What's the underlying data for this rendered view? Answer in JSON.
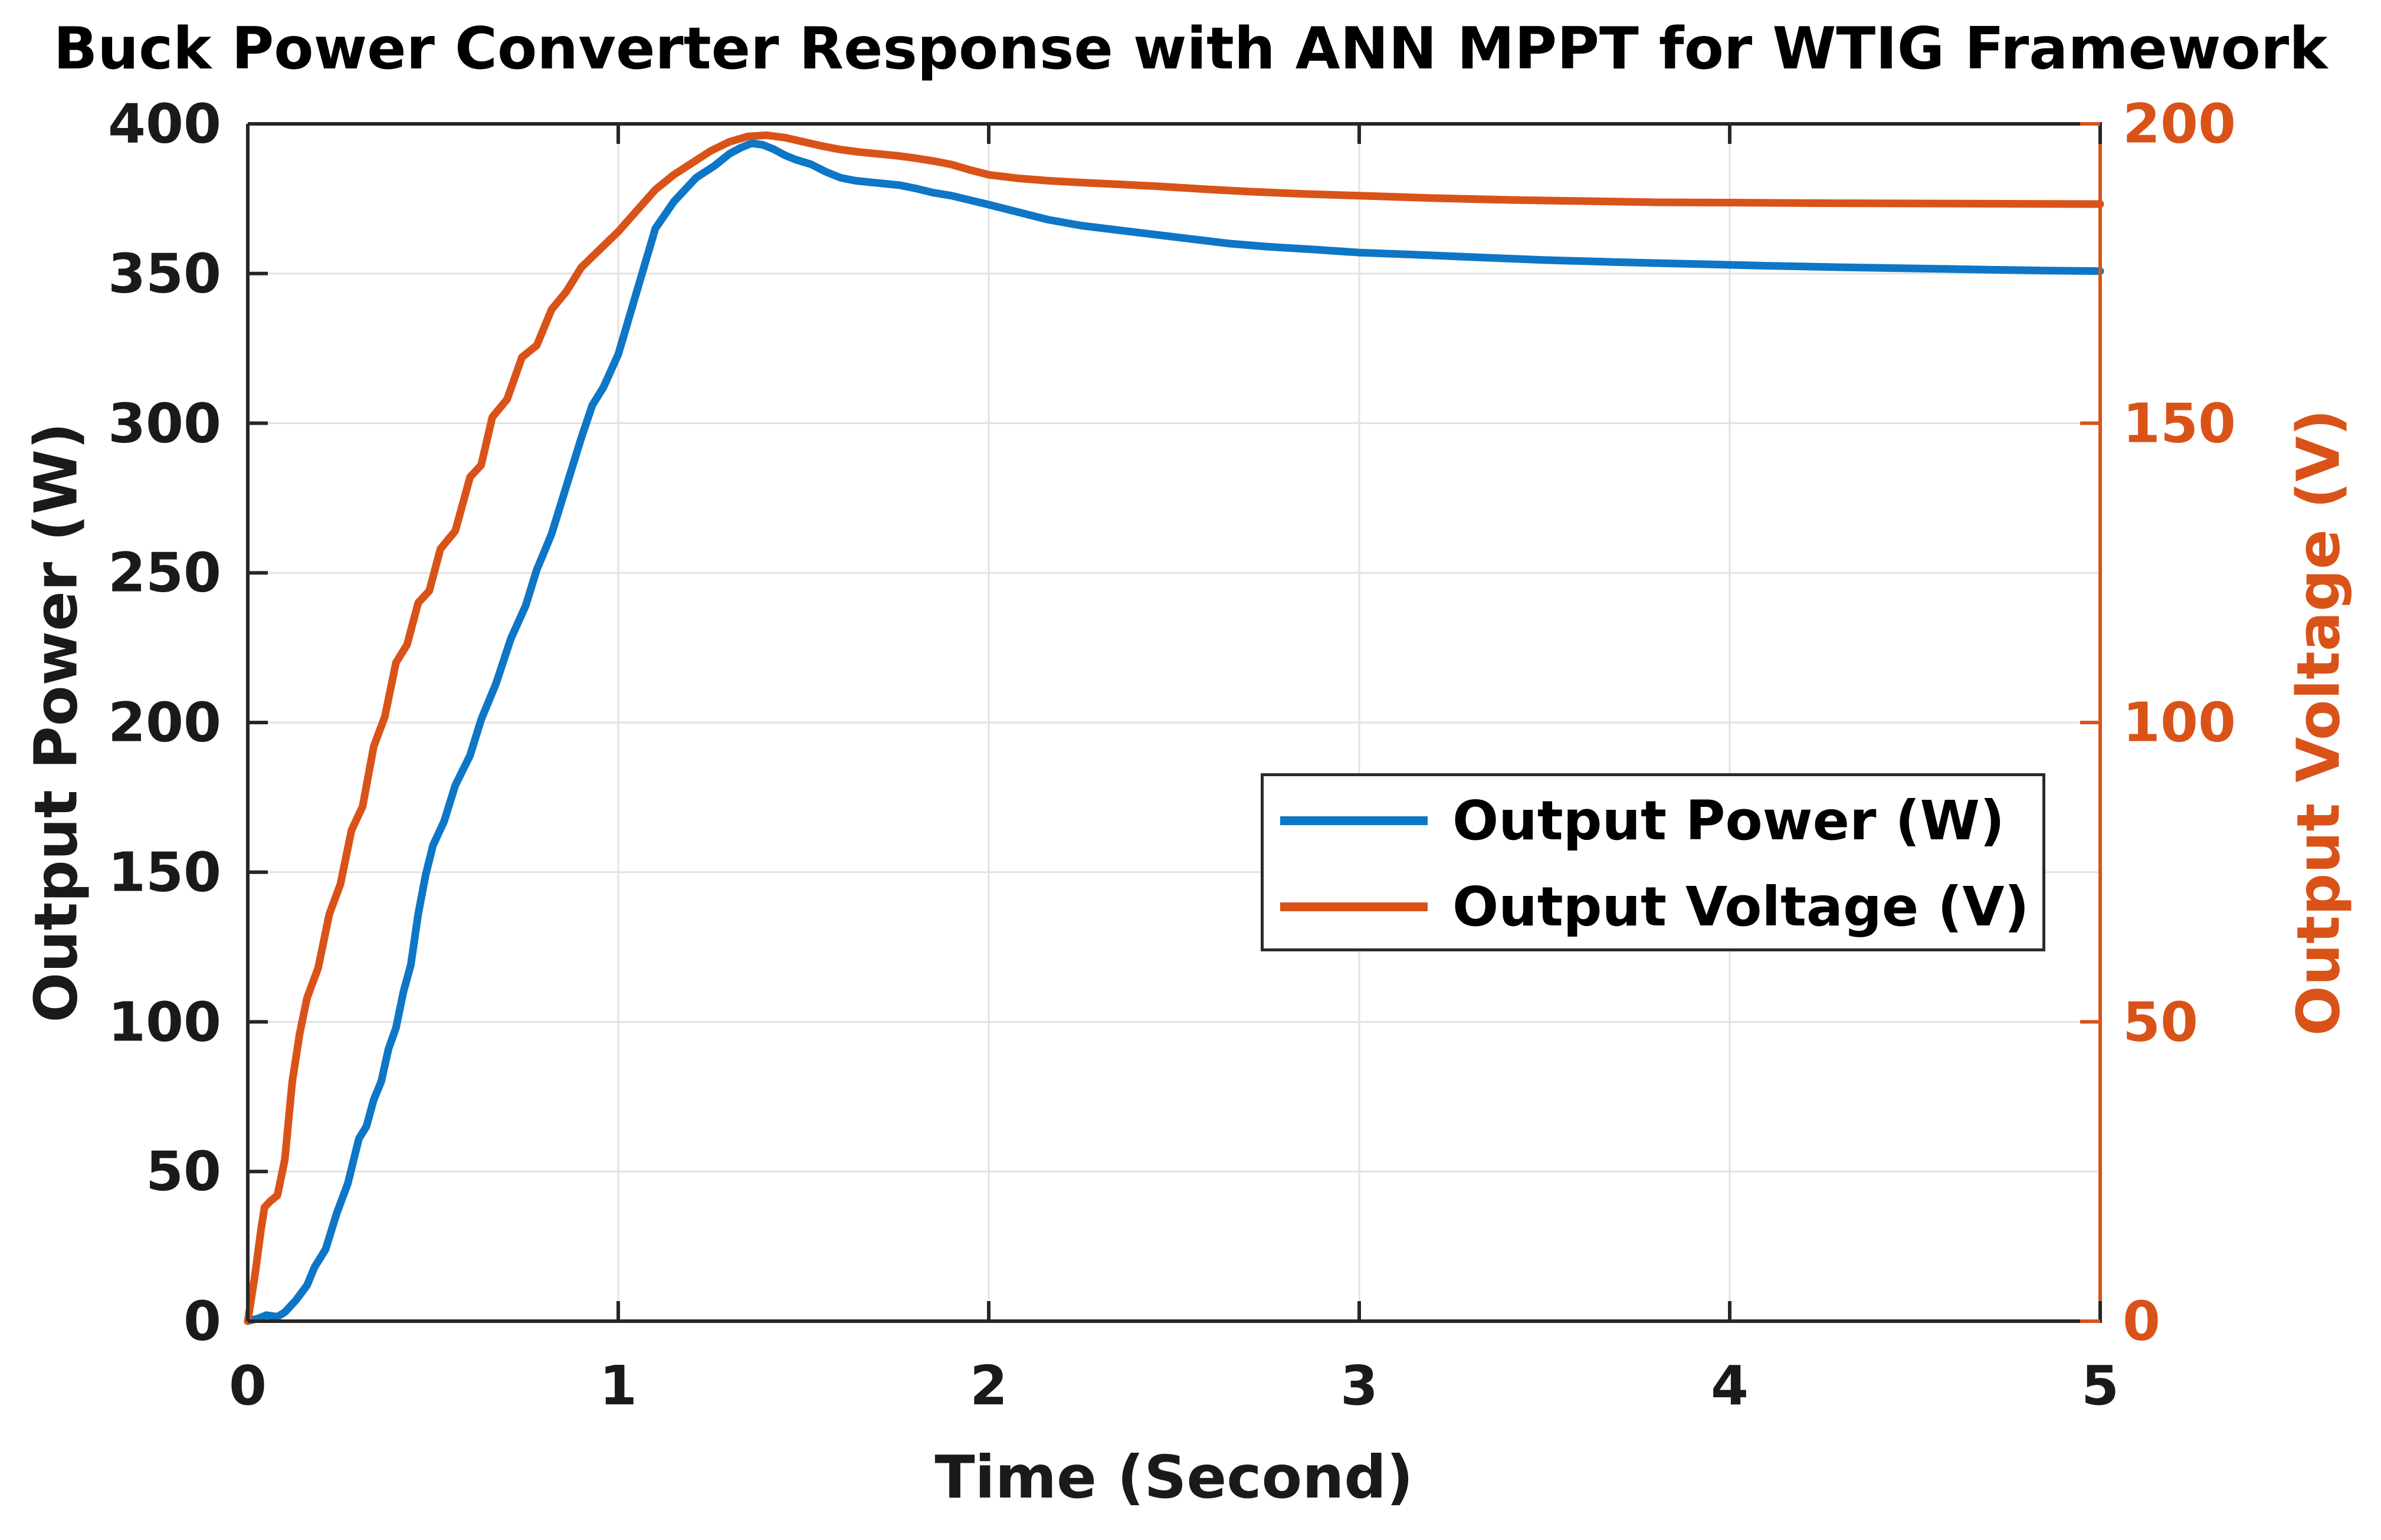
{
  "title": "Buck Power Converter Response with ANN MPPT for WTIG Framework",
  "colors": {
    "power_line": "#0E76C6",
    "voltage_line": "#D95319",
    "grid": "#E2E2E2",
    "axis_dark": "#262626",
    "axis_right": "#D95319",
    "background": "#FFFFFF"
  },
  "chart_data": {
    "type": "line",
    "title": "Buck Power Converter Response with ANN MPPT for WTIG Framework",
    "xlabel": "Time (Second)",
    "ylabel_left": "Output Power (W)",
    "ylabel_right": "Output Voltage (V)",
    "xlim": [
      0,
      5
    ],
    "ylim_left": [
      0,
      400
    ],
    "ylim_right": [
      0,
      200
    ],
    "x_ticks": [
      0,
      1,
      2,
      3,
      4,
      5
    ],
    "y_ticks_left": [
      0,
      50,
      100,
      150,
      200,
      250,
      300,
      350,
      400
    ],
    "y_ticks_right": [
      0,
      50,
      100,
      150,
      200
    ],
    "grid": true,
    "legend": {
      "position": "middle-right",
      "entries": [
        {
          "label": "Output Power (W)",
          "color": "#0E76C6"
        },
        {
          "label": "Output Voltage (V)",
          "color": "#D95319"
        }
      ]
    },
    "series": [
      {
        "name": "Output Power (W)",
        "axis": "left",
        "color": "#0E76C6",
        "points": [
          [
            0,
            0
          ],
          [
            0.03,
            1
          ],
          [
            0.05,
            2
          ],
          [
            0.08,
            1.5
          ],
          [
            0.1,
            3
          ],
          [
            0.13,
            7
          ],
          [
            0.16,
            12
          ],
          [
            0.18,
            18
          ],
          [
            0.21,
            24
          ],
          [
            0.24,
            36
          ],
          [
            0.27,
            46
          ],
          [
            0.3,
            61
          ],
          [
            0.32,
            65
          ],
          [
            0.34,
            74
          ],
          [
            0.36,
            80
          ],
          [
            0.38,
            91
          ],
          [
            0.4,
            98
          ],
          [
            0.42,
            110
          ],
          [
            0.44,
            119
          ],
          [
            0.46,
            136
          ],
          [
            0.48,
            149
          ],
          [
            0.5,
            159
          ],
          [
            0.53,
            167
          ],
          [
            0.56,
            179
          ],
          [
            0.6,
            189
          ],
          [
            0.63,
            201
          ],
          [
            0.67,
            213
          ],
          [
            0.71,
            228
          ],
          [
            0.75,
            239
          ],
          [
            0.78,
            251
          ],
          [
            0.82,
            263
          ],
          [
            0.86,
            279
          ],
          [
            0.9,
            295
          ],
          [
            0.93,
            306
          ],
          [
            0.96,
            312
          ],
          [
            1.0,
            323
          ],
          [
            1.05,
            344
          ],
          [
            1.1,
            365
          ],
          [
            1.15,
            374
          ],
          [
            1.21,
            382
          ],
          [
            1.26,
            386
          ],
          [
            1.3,
            390
          ],
          [
            1.33,
            392
          ],
          [
            1.36,
            393.5
          ],
          [
            1.39,
            393
          ],
          [
            1.42,
            391.5
          ],
          [
            1.45,
            389.5
          ],
          [
            1.48,
            388
          ],
          [
            1.52,
            386.5
          ],
          [
            1.56,
            384
          ],
          [
            1.6,
            382
          ],
          [
            1.64,
            381
          ],
          [
            1.68,
            380.5
          ],
          [
            1.72,
            380
          ],
          [
            1.76,
            379.5
          ],
          [
            1.8,
            378.5
          ],
          [
            1.85,
            377
          ],
          [
            1.9,
            376
          ],
          [
            1.95,
            374.5
          ],
          [
            2.0,
            373
          ],
          [
            2.08,
            370.5
          ],
          [
            2.16,
            368
          ],
          [
            2.25,
            366
          ],
          [
            2.35,
            364.5
          ],
          [
            2.45,
            363
          ],
          [
            2.55,
            361.5
          ],
          [
            2.65,
            360
          ],
          [
            2.75,
            359
          ],
          [
            2.88,
            358
          ],
          [
            3.0,
            357
          ],
          [
            3.15,
            356.3
          ],
          [
            3.3,
            355.5
          ],
          [
            3.5,
            354.5
          ],
          [
            3.7,
            353.8
          ],
          [
            3.9,
            353.2
          ],
          [
            4.1,
            352.6
          ],
          [
            4.3,
            352.1
          ],
          [
            4.5,
            351.7
          ],
          [
            4.7,
            351.3
          ],
          [
            4.85,
            351
          ],
          [
            5.0,
            350.8
          ]
        ]
      },
      {
        "name": "Output Voltage (V)",
        "axis": "right",
        "color": "#D95319",
        "points": [
          [
            0,
            0
          ],
          [
            0.02,
            8
          ],
          [
            0.035,
            15
          ],
          [
            0.045,
            19
          ],
          [
            0.06,
            20
          ],
          [
            0.08,
            21
          ],
          [
            0.1,
            27
          ],
          [
            0.12,
            40
          ],
          [
            0.14,
            48
          ],
          [
            0.16,
            54
          ],
          [
            0.19,
            59
          ],
          [
            0.22,
            68
          ],
          [
            0.25,
            73
          ],
          [
            0.28,
            82
          ],
          [
            0.31,
            86
          ],
          [
            0.34,
            96
          ],
          [
            0.37,
            101
          ],
          [
            0.4,
            110
          ],
          [
            0.43,
            113
          ],
          [
            0.46,
            120
          ],
          [
            0.49,
            122
          ],
          [
            0.52,
            129
          ],
          [
            0.56,
            132
          ],
          [
            0.6,
            141
          ],
          [
            0.63,
            143
          ],
          [
            0.66,
            151
          ],
          [
            0.7,
            154
          ],
          [
            0.74,
            161
          ],
          [
            0.78,
            163
          ],
          [
            0.82,
            169
          ],
          [
            0.86,
            172
          ],
          [
            0.9,
            176
          ],
          [
            0.95,
            179
          ],
          [
            1.0,
            182
          ],
          [
            1.05,
            185.5
          ],
          [
            1.1,
            189
          ],
          [
            1.15,
            191.5
          ],
          [
            1.2,
            193.5
          ],
          [
            1.25,
            195.5
          ],
          [
            1.3,
            197
          ],
          [
            1.35,
            197.9
          ],
          [
            1.4,
            198.1
          ],
          [
            1.45,
            197.7
          ],
          [
            1.5,
            197
          ],
          [
            1.55,
            196.3
          ],
          [
            1.6,
            195.7
          ],
          [
            1.65,
            195.3
          ],
          [
            1.7,
            195
          ],
          [
            1.75,
            194.7
          ],
          [
            1.8,
            194.3
          ],
          [
            1.85,
            193.8
          ],
          [
            1.9,
            193.2
          ],
          [
            1.95,
            192.3
          ],
          [
            2.0,
            191.5
          ],
          [
            2.08,
            190.9
          ],
          [
            2.16,
            190.5
          ],
          [
            2.25,
            190.2
          ],
          [
            2.35,
            189.9
          ],
          [
            2.45,
            189.6
          ],
          [
            2.58,
            189.1
          ],
          [
            2.7,
            188.7
          ],
          [
            2.85,
            188.3
          ],
          [
            3.0,
            188
          ],
          [
            3.2,
            187.6
          ],
          [
            3.4,
            187.3
          ],
          [
            3.6,
            187.1
          ],
          [
            3.8,
            186.9
          ],
          [
            4.0,
            186.85
          ],
          [
            4.25,
            186.75
          ],
          [
            4.5,
            186.7
          ],
          [
            4.75,
            186.65
          ],
          [
            5.0,
            186.6
          ]
        ]
      }
    ]
  }
}
